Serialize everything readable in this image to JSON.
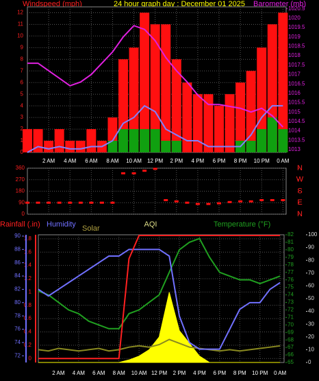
{
  "chart_data": [
    {
      "type": "combo",
      "title": "24 hour graph day : December 01 2025",
      "ylabel": "Windspeed (mph)",
      "y2label": "Barometer (mb)",
      "axis_colors": {
        "y": "#ff2020",
        "y2": "#e020e0"
      },
      "x": [
        0,
        1,
        2,
        3,
        4,
        5,
        6,
        7,
        8,
        9,
        10,
        11,
        12,
        13,
        14,
        15,
        16,
        17,
        18,
        19,
        20,
        21,
        22,
        23,
        24
      ],
      "xlim": [
        0,
        24.3
      ],
      "xticks": [
        {
          "value": 2,
          "label": "2 AM"
        },
        {
          "value": 4,
          "label": "4 AM"
        },
        {
          "value": 6,
          "label": "6 AM"
        },
        {
          "value": 8,
          "label": "8 AM"
        },
        {
          "value": 10,
          "label": "10 AM"
        },
        {
          "value": 12,
          "label": "12 PM"
        },
        {
          "value": 14,
          "label": "2 PM"
        },
        {
          "value": 16,
          "label": "4 PM"
        },
        {
          "value": 18,
          "label": "6 PM"
        },
        {
          "value": 20,
          "label": "8 PM"
        },
        {
          "value": 22,
          "label": "10 PM"
        },
        {
          "value": 24,
          "label": "0 AM"
        }
      ],
      "ylim": [
        0,
        12.5
      ],
      "yticks": [
        0,
        1,
        2,
        3,
        4,
        5,
        6,
        7,
        8,
        9,
        10,
        11,
        12
      ],
      "y2lim": [
        1012.85,
        1020.6
      ],
      "y2ticks": [
        1013,
        1013.5,
        1014,
        1014.5,
        1015,
        1015.5,
        1016,
        1016.5,
        1017,
        1017.5,
        1018,
        1018.5,
        1019,
        1019.5,
        1020,
        1020.5
      ],
      "grid": true,
      "series": [
        {
          "style": "bar",
          "color": "#ff1010",
          "axis": "y",
          "values": [
            2,
            2,
            1,
            2,
            1,
            1,
            2,
            1,
            3,
            8,
            9,
            12,
            11,
            11,
            8,
            6,
            5,
            5,
            4,
            5,
            6,
            7,
            9,
            11,
            12
          ]
        },
        {
          "style": "bar",
          "color": "#10a010",
          "axis": "y",
          "values": [
            0,
            0,
            0,
            0,
            0,
            0,
            0,
            0,
            1,
            2,
            2,
            2,
            2,
            1,
            1,
            0,
            0,
            0,
            0,
            0,
            1,
            1,
            2,
            3,
            2
          ]
        },
        {
          "style": "line",
          "color": "#8080ff",
          "axis": "y",
          "values": [
            0,
            0.5,
            0.3,
            0.5,
            0.3,
            0.3,
            0.5,
            0.5,
            1,
            2.5,
            3,
            4,
            3.5,
            2,
            1.5,
            1,
            1,
            0.5,
            0.5,
            0.5,
            0.5,
            1.5,
            3,
            4,
            4
          ]
        },
        {
          "style": "line",
          "color": "#e020e0",
          "axis": "y2",
          "values": [
            1017.6,
            1017.6,
            1017.2,
            1016.8,
            1016.4,
            1016.6,
            1017,
            1017.6,
            1018.2,
            1019,
            1019.6,
            1019.4,
            1018.8,
            1017.9,
            1017.2,
            1016.6,
            1015.9,
            1015.4,
            1015.4,
            1015.3,
            1015.2,
            1015,
            1015.2,
            1014.8,
            1014.2
          ]
        }
      ]
    },
    {
      "type": "scatter",
      "axis_colors": {
        "y": "#ff2020",
        "y2": "#ff2020"
      },
      "x": [
        0,
        1,
        2,
        3,
        4,
        5,
        6,
        7,
        8,
        9,
        10,
        11,
        12,
        13,
        14,
        15,
        16,
        17,
        18,
        19,
        20,
        21,
        22,
        23,
        24
      ],
      "xlim": [
        0,
        24.3
      ],
      "xticks": [
        2,
        4,
        6,
        8,
        10,
        12,
        14,
        16,
        18,
        20,
        22,
        24
      ],
      "ylim": [
        0,
        360
      ],
      "yticks": [
        0,
        90,
        180,
        270,
        360
      ],
      "y2lim": [
        0,
        360
      ],
      "y2ticks": [
        {
          "value": 360,
          "label": "N"
        },
        {
          "value": 270,
          "label": "W"
        },
        {
          "value": 180,
          "label": "S"
        },
        {
          "value": 90,
          "label": "E"
        },
        {
          "value": 0,
          "label": "N"
        }
      ],
      "grid": true,
      "series": [
        {
          "style": "scatter",
          "color": "#ff1010",
          "axis": "y",
          "values": [
            90,
            90,
            90,
            90,
            90,
            90,
            90,
            90,
            90,
            320,
            320,
            340,
            355,
            110,
            100,
            90,
            80,
            80,
            85,
            95,
            100,
            100,
            110,
            110,
            110
          ]
        }
      ]
    },
    {
      "type": "line",
      "title": "AQI",
      "axis_colors": {
        "y": "#ff2020",
        "y2": "#20a020",
        "y3": "#7070ff",
        "y4": "#dddddd"
      },
      "x": [
        0,
        1,
        2,
        3,
        4,
        5,
        6,
        7,
        8,
        9,
        10,
        11,
        12,
        13,
        14,
        15,
        16,
        17,
        18,
        19,
        20,
        21,
        22,
        23,
        24
      ],
      "xlim": [
        0,
        24.4
      ],
      "xticks": [
        {
          "value": 2,
          "label": "2 AM"
        },
        {
          "value": 4,
          "label": "4 AM"
        },
        {
          "value": 6,
          "label": "6 AM"
        },
        {
          "value": 8,
          "label": "8 AM"
        },
        {
          "value": 10,
          "label": "10 AM"
        },
        {
          "value": 12,
          "label": "12 PM"
        },
        {
          "value": 14,
          "label": "2 PM"
        },
        {
          "value": 16,
          "label": "4 PM"
        },
        {
          "value": 18,
          "label": "6 PM"
        },
        {
          "value": 20,
          "label": "8 PM"
        },
        {
          "value": 22,
          "label": "10 PM"
        },
        {
          "value": 24,
          "label": "0 AM"
        }
      ],
      "ylim": [
        -0.06,
        1.86
      ],
      "yticks": [
        0,
        0.2,
        0.4,
        0.6,
        0.8,
        1,
        1.2,
        1.4,
        1.6,
        1.8
      ],
      "y2lim": [
        65,
        82
      ],
      "y2ticks": [
        65,
        66,
        67,
        68,
        69,
        70,
        71,
        72,
        73,
        74,
        75,
        76,
        77,
        78,
        79,
        80,
        81,
        82
      ],
      "y3lim": [
        71,
        90.2
      ],
      "y3ticks": [
        72,
        74,
        76,
        78,
        80,
        82,
        84,
        86,
        88,
        90
      ],
      "y4lim": [
        0,
        100
      ],
      "y4ticks": [
        0,
        10,
        20,
        30,
        40,
        50,
        60,
        70,
        80,
        90,
        100
      ],
      "grid": true,
      "series": [
        {
          "name": "Solar",
          "style": "area",
          "color": "#ffff00",
          "axis": "y4",
          "values": [
            0,
            0,
            0,
            0,
            0,
            0,
            0,
            0,
            0,
            2,
            5,
            10,
            20,
            55,
            25,
            15,
            5,
            0,
            0,
            0,
            0,
            0,
            0,
            0,
            0
          ]
        },
        {
          "name": "AQI",
          "style": "line",
          "color": "#8a8a20",
          "axis": "y4",
          "values": [
            10,
            9,
            11,
            10,
            9,
            10,
            11,
            9,
            10,
            12,
            13,
            12,
            14,
            18,
            15,
            12,
            11,
            10,
            9,
            10,
            9,
            10,
            11,
            12,
            13
          ]
        },
        {
          "name": "Temperature (°F)",
          "style": "line",
          "color": "#20a020",
          "axis": "y2",
          "values": [
            74.5,
            74,
            73,
            72,
            71.5,
            70.5,
            70,
            69.5,
            69.5,
            71.5,
            72,
            73,
            74,
            77,
            80,
            81,
            81.5,
            79,
            77,
            76.5,
            76,
            76,
            75.5,
            76,
            76.5
          ]
        },
        {
          "name": "Humidity",
          "style": "line",
          "color": "#7070ff",
          "axis": "y3",
          "values": [
            82,
            81,
            82,
            83,
            84,
            85,
            86,
            87,
            87,
            88,
            88,
            88,
            88,
            87,
            78,
            74,
            73,
            73,
            73,
            76,
            79,
            80,
            80,
            82,
            83
          ]
        },
        {
          "name": "Rainfall (.in)",
          "style": "line",
          "color": "#ff2020",
          "axis": "y",
          "values": [
            0,
            0,
            0,
            0,
            0,
            0,
            0,
            0,
            0,
            1.5,
            1.85,
            1.85,
            1.85,
            1.85,
            1.85,
            1.85,
            1.85,
            1.85,
            1.85,
            1.85,
            1.85,
            1.85,
            1.85,
            1.85,
            1.85
          ]
        }
      ]
    }
  ]
}
